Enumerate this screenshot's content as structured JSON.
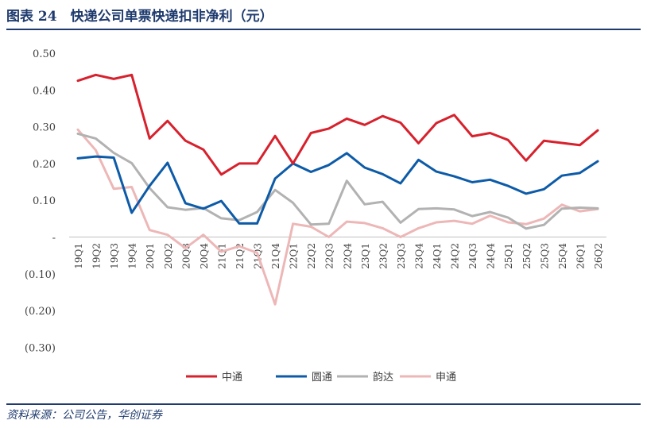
{
  "header": {
    "title": "图表 24　快递公司单票快递扣非净利（元）"
  },
  "source": "资料来源：公司公告，华创证券",
  "colors": {
    "title": "#1f3b6e"
  },
  "chart_data": {
    "type": "line",
    "categories": [
      "19Q1",
      "19Q2",
      "19Q3",
      "19Q4",
      "20Q1",
      "20Q2",
      "20Q3",
      "20Q4",
      "21Q1",
      "21Q2",
      "21Q3",
      "21Q4",
      "22Q1",
      "22Q2",
      "22Q3",
      "22Q4",
      "23Q1",
      "23Q2",
      "23Q3",
      "23Q4",
      "24Q1",
      "24Q2",
      "24Q3",
      "24Q4",
      "25Q1",
      "25Q2",
      "25Q3",
      "25Q4",
      "26Q1",
      "26Q2"
    ],
    "y_tick_labels": [
      "0.50",
      "0.40",
      "0.30",
      "0.20",
      "0.10",
      "-",
      "(0.10)",
      "(0.20)",
      "(0.30)"
    ],
    "ylim": [
      -0.3,
      0.5
    ],
    "grid": false,
    "legend_position": "bottom",
    "series": [
      {
        "name": "中通",
        "color": "#d7212d",
        "values": [
          0.425,
          0.441,
          0.43,
          0.441,
          0.268,
          0.316,
          0.262,
          0.238,
          0.17,
          0.2,
          0.2,
          0.275,
          0.2,
          0.283,
          0.295,
          0.322,
          0.305,
          0.329,
          0.311,
          0.255,
          0.31,
          0.332,
          0.274,
          0.283,
          0.264,
          0.208,
          0.262,
          0.256,
          0.25,
          0.29
        ]
      },
      {
        "name": "圆通",
        "color": "#0d5ba8",
        "values": [
          0.214,
          0.219,
          0.216,
          0.066,
          0.139,
          0.202,
          0.092,
          0.077,
          0.098,
          0.037,
          0.037,
          0.159,
          0.2,
          0.177,
          0.196,
          0.228,
          0.189,
          0.171,
          0.146,
          0.21,
          0.178,
          0.165,
          0.149,
          0.156,
          0.139,
          0.118,
          0.13,
          0.167,
          0.174,
          0.206
        ]
      },
      {
        "name": "韵达",
        "color": "#b2b2b2",
        "values": [
          0.281,
          0.268,
          0.229,
          0.201,
          0.133,
          0.081,
          0.074,
          0.079,
          0.051,
          0.046,
          0.068,
          0.128,
          0.093,
          0.034,
          0.036,
          0.153,
          0.089,
          0.096,
          0.039,
          0.076,
          0.078,
          0.075,
          0.057,
          0.068,
          0.053,
          0.023,
          0.033,
          0.077,
          0.08,
          0.078
        ]
      },
      {
        "name": "申通",
        "color": "#edb7b7",
        "values": [
          0.292,
          0.236,
          0.131,
          0.136,
          0.019,
          0.006,
          -0.03,
          0.006,
          -0.04,
          -0.025,
          -0.043,
          -0.183,
          0.036,
          0.028,
          0.0,
          0.042,
          0.038,
          0.024,
          0.0,
          0.024,
          0.04,
          0.044,
          0.036,
          0.058,
          0.04,
          0.035,
          0.05,
          0.088,
          0.07,
          0.076
        ]
      }
    ]
  }
}
